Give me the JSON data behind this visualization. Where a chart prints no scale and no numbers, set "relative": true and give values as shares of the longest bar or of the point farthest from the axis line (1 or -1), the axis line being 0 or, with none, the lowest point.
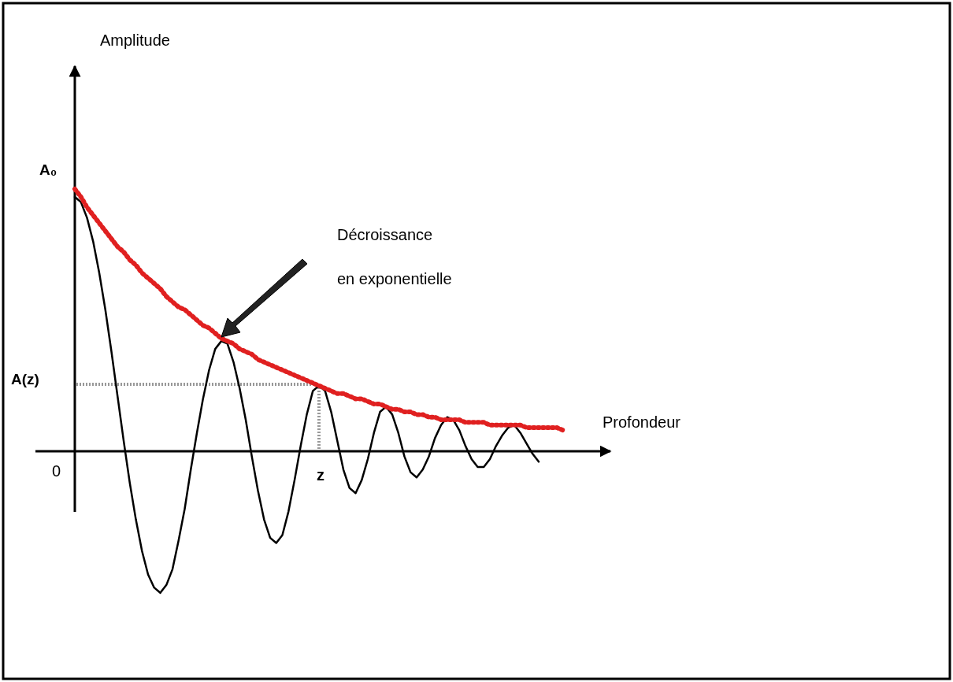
{
  "chart_data": {
    "type": "line",
    "xlabel": "Profondeur",
    "relative": true,
    "categories": [
      null,
      null,
      null,
      null,
      null,
      null,
      null,
      null,
      null,
      null,
      null,
      null,
      null,
      null,
      null,
      null,
      null,
      null,
      null,
      null,
      null,
      null,
      null,
      null,
      null,
      null,
      null,
      null,
      null,
      null,
      null,
      null,
      null,
      null,
      null,
      null,
      null,
      null,
      null,
      null,
      null,
      null,
      null,
      null,
      null,
      null,
      null,
      null,
      null,
      null,
      null,
      null,
      null,
      null,
      null,
      null,
      null,
      null,
      null,
      null,
      null,
      null,
      null,
      null,
      null,
      null,
      null,
      null,
      null,
      null,
      null,
      null,
      null,
      null,
      null,
      null,
      null,
      null,
      null,
      null,
      null
    ],
    "series": [
      {
        "color": "#000000",
        "line_style": "solid",
        "values": [
          0.97,
          0.95,
          0.89,
          0.8,
          0.68,
          0.54,
          0.38,
          0.21,
          0.04,
          -0.12,
          -0.26,
          -0.38,
          -0.47,
          -0.52,
          -0.54,
          -0.51,
          -0.45,
          -0.34,
          -0.22,
          -0.07,
          0.07,
          0.2,
          0.31,
          0.39,
          0.42,
          0.41,
          0.34,
          0.24,
          0.12,
          -0.02,
          -0.15,
          -0.26,
          -0.33,
          -0.35,
          -0.32,
          -0.23,
          -0.11,
          0.02,
          0.14,
          0.23,
          0.25,
          0.23,
          0.15,
          0.04,
          -0.07,
          -0.14,
          -0.16,
          -0.11,
          -0.03,
          0.07,
          0.15,
          0.17,
          0.14,
          0.07,
          -0.02,
          -0.08,
          -0.1,
          -0.07,
          -0.02,
          0.05,
          0.1,
          0.13,
          0.12,
          0.08,
          0.02,
          -0.03,
          -0.06,
          -0.06,
          -0.03,
          0.02,
          0.06,
          0.09,
          0.1,
          0.07,
          0.03,
          -0.01,
          -0.04,
          null,
          null,
          null,
          null
        ]
      },
      {
        "color": "#e02020",
        "line_style": "dotted",
        "values": [
          1,
          0.97,
          0.93,
          0.9,
          0.87,
          0.84,
          0.81,
          0.78,
          0.76,
          0.73,
          0.71,
          0.68,
          0.66,
          0.64,
          0.62,
          0.59,
          0.57,
          0.55,
          0.54,
          0.52,
          0.5,
          0.48,
          0.47,
          0.45,
          0.43,
          0.42,
          0.41,
          0.39,
          0.38,
          0.37,
          0.35,
          0.34,
          0.33,
          0.32,
          0.31,
          0.3,
          0.29,
          0.28,
          0.27,
          0.26,
          0.25,
          0.24,
          0.23,
          0.22,
          0.22,
          0.21,
          0.2,
          0.2,
          0.19,
          0.18,
          0.18,
          0.17,
          0.16,
          0.16,
          0.15,
          0.15,
          0.14,
          0.14,
          0.13,
          0.13,
          0.12,
          0.12,
          0.12,
          0.12,
          0.11,
          0.11,
          0.11,
          0.11,
          0.1,
          0.1,
          0.1,
          0.1,
          0.1,
          0.1,
          0.09,
          0.09,
          0.09,
          0.09,
          0.09,
          0.09,
          0.08
        ]
      }
    ],
    "annotations": [
      "A₀",
      "A(z)",
      "0",
      "z",
      "Décroissance",
      "en exponentielle",
      "Amplitude"
    ]
  }
}
